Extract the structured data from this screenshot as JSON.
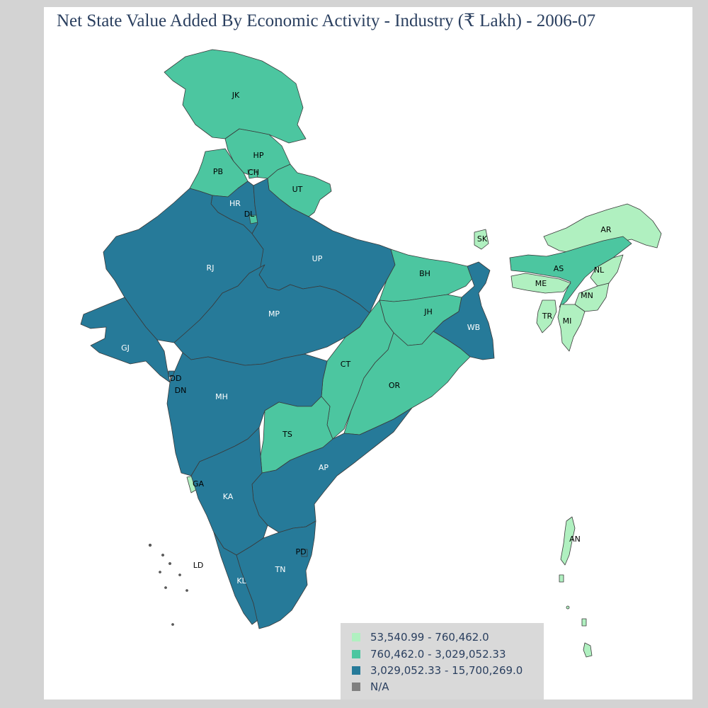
{
  "title": "Net State Value Added By Economic Activity - Industry (₹ Lakh) - 2006-07",
  "colors": {
    "low": "#b0f0c0",
    "mid": "#4cc6a0",
    "high": "#267a99",
    "na": "#808080"
  },
  "legend": [
    {
      "label": "53,540.99 - 760,462.0",
      "color": "#b0f0c0"
    },
    {
      "label": "760,462.0 - 3,029,052.33",
      "color": "#4cc6a0"
    },
    {
      "label": "3,029,052.33 - 15,700,269.0",
      "color": "#267a99"
    },
    {
      "label": "N/A",
      "color": "#808080"
    }
  ],
  "states": {
    "JK": {
      "label": "JK",
      "bin": "mid"
    },
    "HP": {
      "label": "HP",
      "bin": "mid"
    },
    "PB": {
      "label": "PB",
      "bin": "mid"
    },
    "CH": {
      "label": "CH",
      "bin": "mid"
    },
    "UT": {
      "label": "UT",
      "bin": "mid"
    },
    "HR": {
      "label": "HR",
      "bin": "high"
    },
    "DL": {
      "label": "DL",
      "bin": "mid"
    },
    "RJ": {
      "label": "RJ",
      "bin": "high"
    },
    "UP": {
      "label": "UP",
      "bin": "high"
    },
    "GJ": {
      "label": "GJ",
      "bin": "high"
    },
    "MP": {
      "label": "MP",
      "bin": "high"
    },
    "BH": {
      "label": "BH",
      "bin": "mid"
    },
    "JH": {
      "label": "JH",
      "bin": "mid"
    },
    "WB": {
      "label": "WB",
      "bin": "high"
    },
    "SK": {
      "label": "SK",
      "bin": "low"
    },
    "AR": {
      "label": "AR",
      "bin": "low"
    },
    "AS": {
      "label": "AS",
      "bin": "mid"
    },
    "NL": {
      "label": "NL",
      "bin": "low"
    },
    "ME": {
      "label": "ME",
      "bin": "low"
    },
    "MN": {
      "label": "MN",
      "bin": "low"
    },
    "TR": {
      "label": "TR",
      "bin": "low"
    },
    "MI": {
      "label": "MI",
      "bin": "low"
    },
    "CT": {
      "label": "CT",
      "bin": "mid"
    },
    "OR": {
      "label": "OR",
      "bin": "mid"
    },
    "DD": {
      "label": "DD",
      "bin": "high"
    },
    "DN": {
      "label": "DN",
      "bin": "high"
    },
    "MH": {
      "label": "MH",
      "bin": "high"
    },
    "TS": {
      "label": "TS",
      "bin": "mid"
    },
    "AP": {
      "label": "AP",
      "bin": "high"
    },
    "GA": {
      "label": "GA",
      "bin": "low"
    },
    "KA": {
      "label": "KA",
      "bin": "high"
    },
    "KL": {
      "label": "KL",
      "bin": "high"
    },
    "TN": {
      "label": "TN",
      "bin": "high"
    },
    "PD": {
      "label": "PD",
      "bin": "high"
    },
    "LD": {
      "label": "LD",
      "bin": "na"
    },
    "AN": {
      "label": "AN",
      "bin": "low"
    }
  }
}
